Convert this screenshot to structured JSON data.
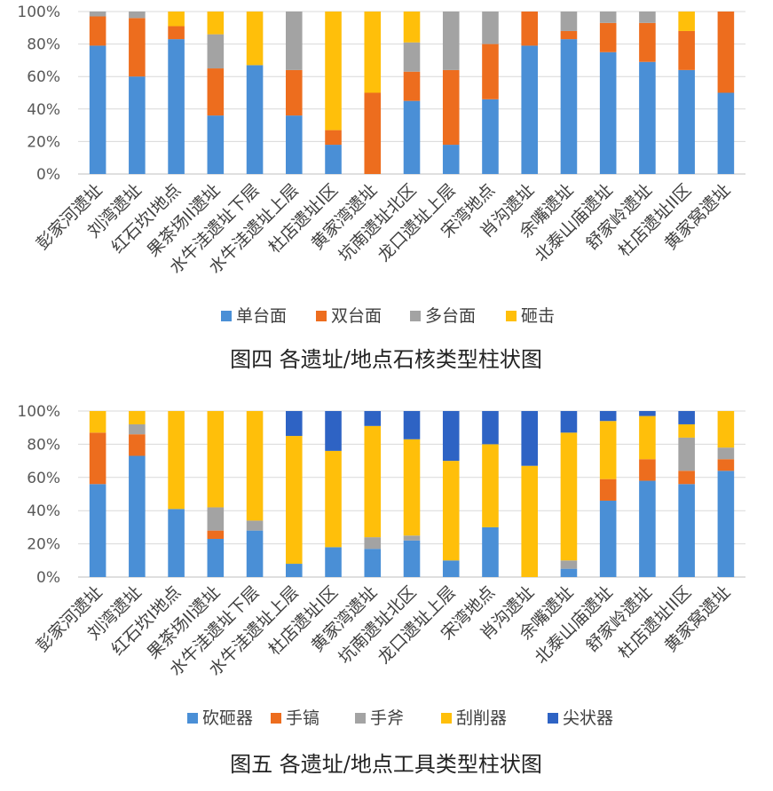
{
  "chart_data": [
    {
      "type": "bar",
      "stacked": true,
      "title": "图四  各遗址/地点石核类型柱状图",
      "categories": [
        "彭家河遗址",
        "刘湾遗址",
        "红石坎I地点",
        "果茶场II遗址",
        "水牛洼遗址下层",
        "水牛洼遗址上层",
        "杜店遗址I区",
        "黄家湾遗址",
        "坑南遗址北区",
        "龙口遗址上层",
        "宋湾地点",
        "肖沟遗址",
        "余嘴遗址",
        "北泰山庙遗址",
        "舒家岭遗址",
        "杜店遗址II区",
        "黄家窝遗址"
      ],
      "ylim": [
        0,
        100
      ],
      "yticks": [
        "0%",
        "20%",
        "40%",
        "60%",
        "80%",
        "100%"
      ],
      "grid": true,
      "legend_position": "bottom",
      "series": [
        {
          "name": "单台面",
          "color": "#4a8fd6",
          "values": [
            79,
            60,
            83,
            36,
            67,
            36,
            18,
            0,
            45,
            18,
            46,
            79,
            83,
            75,
            69,
            64,
            50
          ]
        },
        {
          "name": "双台面",
          "color": "#ed6d1e",
          "values": [
            18,
            36,
            8,
            29,
            0,
            28,
            9,
            50,
            18,
            46,
            34,
            21,
            5,
            18,
            24,
            24,
            50
          ]
        },
        {
          "name": "多台面",
          "color": "#a3a3a3",
          "values": [
            3,
            4,
            0,
            21,
            0,
            36,
            0,
            0,
            18,
            36,
            20,
            0,
            12,
            7,
            7,
            0,
            0
          ]
        },
        {
          "name": "砸击",
          "color": "#ffbf0a",
          "values": [
            0,
            0,
            9,
            14,
            33,
            0,
            73,
            50,
            19,
            0,
            0,
            0,
            0,
            0,
            0,
            12,
            0
          ]
        }
      ]
    },
    {
      "type": "bar",
      "stacked": true,
      "title": "图五  各遗址/地点工具类型柱状图",
      "categories": [
        "彭家河遗址",
        "刘湾遗址",
        "红石坎I地点",
        "果茶场II遗址",
        "水牛洼遗址下层",
        "水牛洼遗址上层",
        "杜店遗址I区",
        "黄家湾遗址",
        "坑南遗址北区",
        "龙口遗址上层",
        "宋湾地点",
        "肖沟遗址",
        "余嘴遗址",
        "北泰山庙遗址",
        "舒家岭遗址",
        "杜店遗址II区",
        "黄家窝遗址"
      ],
      "ylim": [
        0,
        100
      ],
      "yticks": [
        "0%",
        "20%",
        "40%",
        "60%",
        "80%",
        "100%"
      ],
      "grid": true,
      "legend_position": "bottom",
      "series": [
        {
          "name": "砍砸器",
          "color": "#4a8fd6",
          "values": [
            56,
            73,
            41,
            23,
            28,
            8,
            18,
            17,
            22,
            10,
            30,
            0,
            5,
            46,
            58,
            56,
            64
          ]
        },
        {
          "name": "手镐",
          "color": "#ed6d1e",
          "values": [
            31,
            13,
            0,
            5,
            0,
            0,
            0,
            0,
            0,
            0,
            0,
            0,
            0,
            13,
            13,
            8,
            7
          ]
        },
        {
          "name": "手斧",
          "color": "#a3a3a3",
          "values": [
            0,
            6,
            0,
            14,
            6,
            0,
            0,
            7,
            3,
            0,
            0,
            0,
            5,
            0,
            0,
            20,
            7
          ]
        },
        {
          "name": "刮削器",
          "color": "#ffbf0a",
          "values": [
            13,
            8,
            59,
            58,
            66,
            77,
            58,
            67,
            58,
            60,
            50,
            67,
            77,
            35,
            26,
            8,
            22
          ]
        },
        {
          "name": "尖状器",
          "color": "#2e63c4",
          "values": [
            0,
            0,
            0,
            0,
            0,
            15,
            24,
            9,
            17,
            30,
            20,
            33,
            13,
            6,
            3,
            8,
            0
          ]
        }
      ]
    }
  ]
}
